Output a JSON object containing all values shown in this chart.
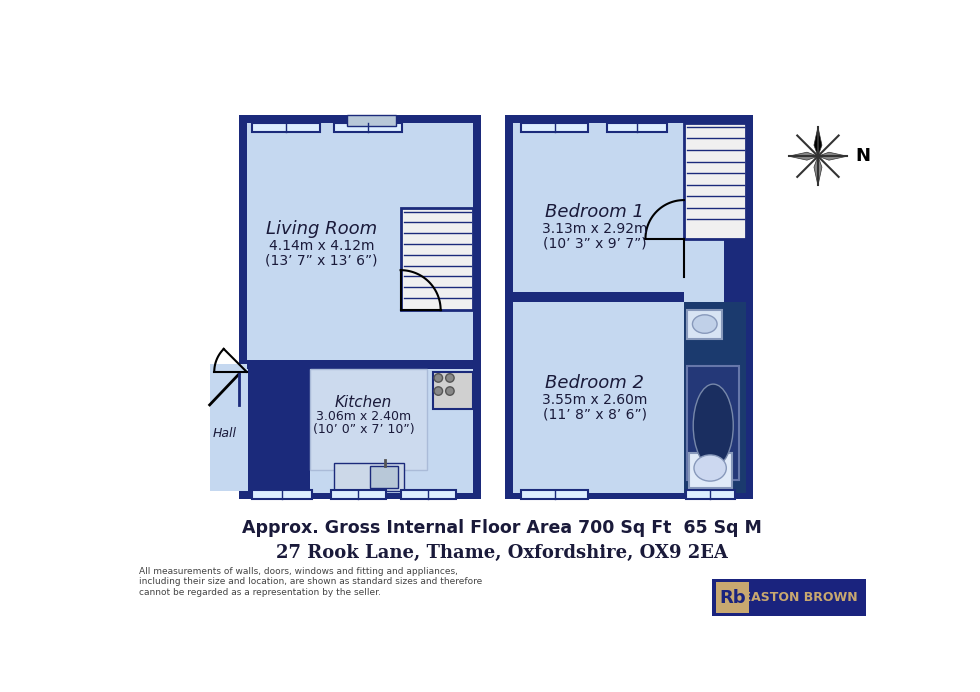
{
  "bg_color": "#ffffff",
  "wall_color": "#1b2a7b",
  "floor_color": "#c5d8f0",
  "bath_color": "#1b3a6e",
  "stair_color": "#f0f0f0",
  "window_color": "#ddeeff",
  "title_text": "Approx. Gross Internal Floor Area 700 Sq Ft  65 Sq M",
  "address_text": "27 Rook Lane, Thame, Oxfordshire, OX9 2EA",
  "disclaimer_text": "All measurements of walls, doors, windows and fitting and appliances,\nincluding their size and location, are shown as standard sizes and therefore\ncannot be regarded as a representation by the seller.",
  "living_room_label": "Living Room",
  "living_room_dims": "4.14m x 4.12m",
  "living_room_dims2": "(13’ 7” x 13’ 6”)",
  "kitchen_label": "Kitchen",
  "kitchen_dims": "3.06m x 2.40m",
  "kitchen_dims2": "(10’ 0” x 7’ 10”)",
  "hall_label": "Hall",
  "bedroom1_label": "Bedroom 1",
  "bedroom1_dims": "3.13m x 2.92m",
  "bedroom1_dims2": "(10’ 3” x 9’ 7”)",
  "bedroom2_label": "Bedroom 2",
  "bedroom2_dims": "3.55m x 2.60m",
  "bedroom2_dims2": "(11’ 8” x 8’ 6”)"
}
